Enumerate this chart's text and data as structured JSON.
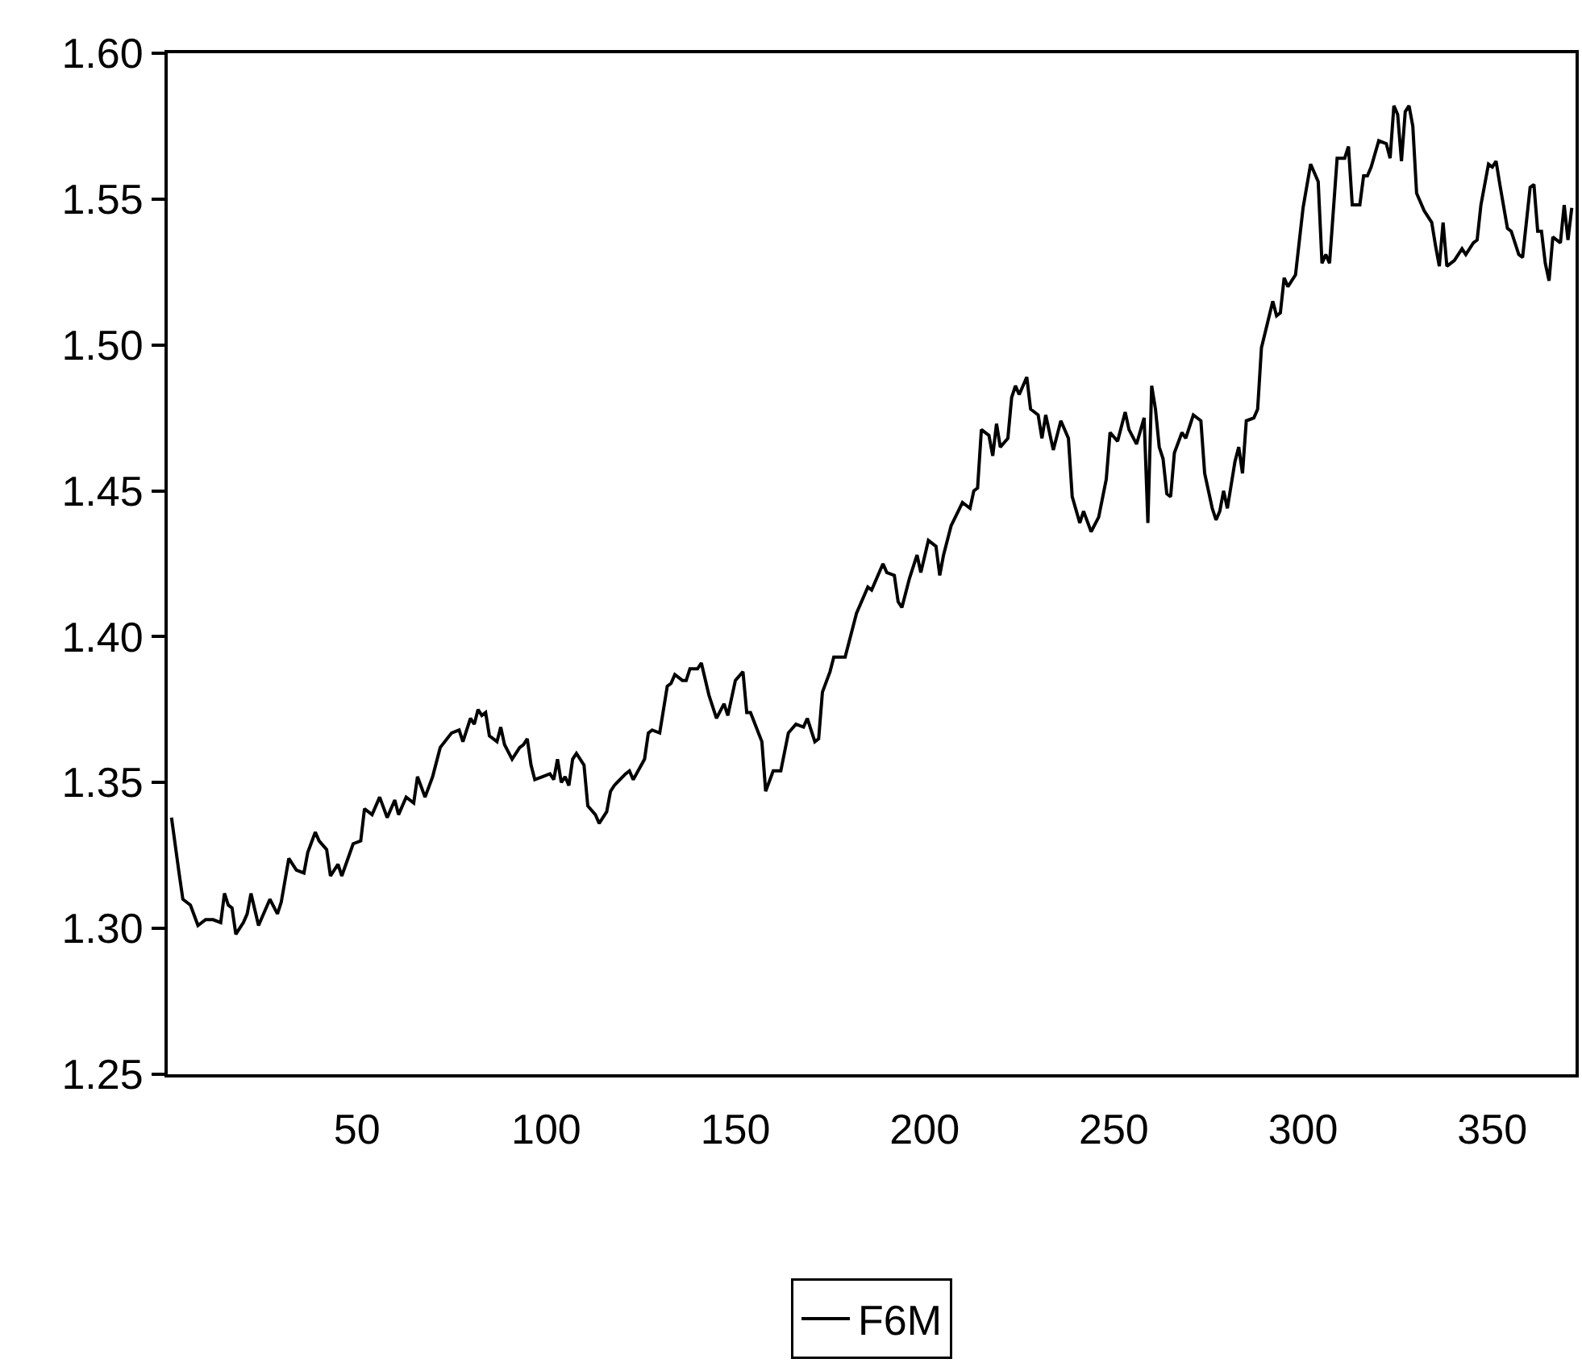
{
  "chart_data": {
    "type": "line",
    "legend": "bottom",
    "grid": false,
    "marker": "none",
    "line_style": "solid",
    "xlim": [
      0,
      372
    ],
    "xticks": [
      50,
      100,
      150,
      200,
      250,
      300,
      350
    ],
    "ylim": [
      1.25,
      1.6
    ],
    "yticks": [
      {
        "value": 1.25,
        "label": "1.25"
      },
      {
        "value": 1.3,
        "label": "1.30"
      },
      {
        "value": 1.35,
        "label": "1.35"
      },
      {
        "value": 1.4,
        "label": "1.40"
      },
      {
        "value": 1.45,
        "label": "1.45"
      },
      {
        "value": 1.5,
        "label": "1.50"
      },
      {
        "value": 1.55,
        "label": "1.55"
      },
      {
        "value": 1.6,
        "label": "1.60"
      }
    ],
    "series": [
      {
        "name": "F6M",
        "color": "#000000",
        "x": [
          1,
          3,
          4,
          6,
          8,
          10,
          12,
          14,
          15,
          16,
          17,
          18,
          20,
          21,
          22,
          24,
          27,
          29,
          30,
          32,
          34,
          36,
          37,
          39,
          40,
          42,
          43,
          45,
          46,
          49,
          51,
          52,
          54,
          56,
          58,
          60,
          61,
          63,
          65,
          66,
          68,
          70,
          72,
          75,
          77,
          78,
          80,
          81,
          82,
          83,
          84,
          85,
          87,
          88,
          89,
          91,
          93,
          94,
          95,
          96,
          97,
          99,
          101,
          102,
          103,
          104,
          105,
          106,
          107,
          108,
          110,
          111,
          113,
          114,
          116,
          117,
          118,
          121,
          122,
          123,
          126,
          127,
          128,
          130,
          132,
          133,
          134,
          136,
          137,
          138,
          140,
          141,
          143,
          145,
          147,
          148,
          150,
          152,
          153,
          154,
          157,
          158,
          160,
          162,
          164,
          166,
          168,
          169,
          171,
          172,
          173,
          175,
          176,
          179,
          182,
          185,
          186,
          189,
          190,
          192,
          193,
          194,
          196,
          198,
          199,
          201,
          203,
          204,
          205,
          207,
          210,
          212,
          213,
          214,
          215,
          217,
          218,
          219,
          220,
          222,
          223,
          224,
          225,
          227,
          228,
          230,
          231,
          232,
          234,
          236,
          238,
          239,
          241,
          242,
          244,
          246,
          248,
          249,
          251,
          253,
          254,
          256,
          258,
          259,
          260,
          261,
          262,
          263,
          264,
          265,
          266,
          268,
          269,
          271,
          273,
          274,
          276,
          277,
          278,
          279,
          280,
          282,
          283,
          284,
          285,
          287,
          288,
          289,
          292,
          293,
          294,
          295,
          296,
          298,
          300,
          302,
          304,
          305,
          306,
          307,
          309,
          311,
          312,
          313,
          315,
          316,
          317,
          318,
          320,
          322,
          323,
          324,
          325,
          326,
          327,
          328,
          329,
          330,
          332,
          334,
          335,
          336,
          337,
          338,
          340,
          342,
          343,
          345,
          346,
          347,
          349,
          350,
          351,
          352,
          354,
          355,
          357,
          358,
          360,
          361,
          362,
          363,
          364,
          365,
          366,
          368,
          369,
          370,
          371
        ],
        "values": [
          1.338,
          1.319,
          1.31,
          1.308,
          1.301,
          1.303,
          1.303,
          1.302,
          1.312,
          1.308,
          1.307,
          1.298,
          1.302,
          1.305,
          1.312,
          1.301,
          1.31,
          1.305,
          1.309,
          1.324,
          1.32,
          1.319,
          1.326,
          1.333,
          1.33,
          1.327,
          1.318,
          1.322,
          1.318,
          1.329,
          1.33,
          1.341,
          1.339,
          1.345,
          1.338,
          1.344,
          1.339,
          1.345,
          1.343,
          1.352,
          1.345,
          1.352,
          1.362,
          1.367,
          1.368,
          1.364,
          1.372,
          1.37,
          1.375,
          1.373,
          1.374,
          1.366,
          1.364,
          1.369,
          1.363,
          1.358,
          1.362,
          1.363,
          1.365,
          1.356,
          1.351,
          1.352,
          1.353,
          1.351,
          1.358,
          1.35,
          1.352,
          1.349,
          1.358,
          1.36,
          1.356,
          1.342,
          1.339,
          1.336,
          1.34,
          1.347,
          1.349,
          1.353,
          1.354,
          1.351,
          1.358,
          1.367,
          1.368,
          1.367,
          1.383,
          1.384,
          1.387,
          1.385,
          1.385,
          1.389,
          1.389,
          1.391,
          1.38,
          1.372,
          1.377,
          1.373,
          1.385,
          1.388,
          1.374,
          1.374,
          1.364,
          1.347,
          1.354,
          1.354,
          1.367,
          1.37,
          1.369,
          1.372,
          1.364,
          1.365,
          1.381,
          1.388,
          1.393,
          1.393,
          1.408,
          1.417,
          1.416,
          1.425,
          1.422,
          1.421,
          1.412,
          1.41,
          1.42,
          1.428,
          1.422,
          1.433,
          1.431,
          1.421,
          1.428,
          1.438,
          1.446,
          1.444,
          1.45,
          1.451,
          1.471,
          1.469,
          1.462,
          1.473,
          1.465,
          1.468,
          1.482,
          1.486,
          1.483,
          1.489,
          1.478,
          1.476,
          1.468,
          1.476,
          1.464,
          1.474,
          1.468,
          1.448,
          1.439,
          1.443,
          1.436,
          1.441,
          1.454,
          1.47,
          1.467,
          1.477,
          1.471,
          1.466,
          1.475,
          1.439,
          1.486,
          1.478,
          1.465,
          1.461,
          1.449,
          1.448,
          1.463,
          1.47,
          1.468,
          1.476,
          1.474,
          1.456,
          1.444,
          1.44,
          1.443,
          1.45,
          1.444,
          1.46,
          1.465,
          1.456,
          1.474,
          1.475,
          1.478,
          1.499,
          1.515,
          1.51,
          1.511,
          1.523,
          1.52,
          1.524,
          1.547,
          1.562,
          1.556,
          1.528,
          1.531,
          1.528,
          1.564,
          1.564,
          1.568,
          1.548,
          1.548,
          1.558,
          1.558,
          1.561,
          1.57,
          1.569,
          1.564,
          1.582,
          1.579,
          1.563,
          1.58,
          1.582,
          1.575,
          1.552,
          1.546,
          1.542,
          1.534,
          1.527,
          1.542,
          1.527,
          1.529,
          1.533,
          1.531,
          1.535,
          1.536,
          1.548,
          1.562,
          1.561,
          1.563,
          1.555,
          1.54,
          1.539,
          1.531,
          1.53,
          1.554,
          1.555,
          1.539,
          1.539,
          1.528,
          1.522,
          1.537,
          1.535,
          1.548,
          1.536,
          1.547
        ]
      }
    ]
  }
}
